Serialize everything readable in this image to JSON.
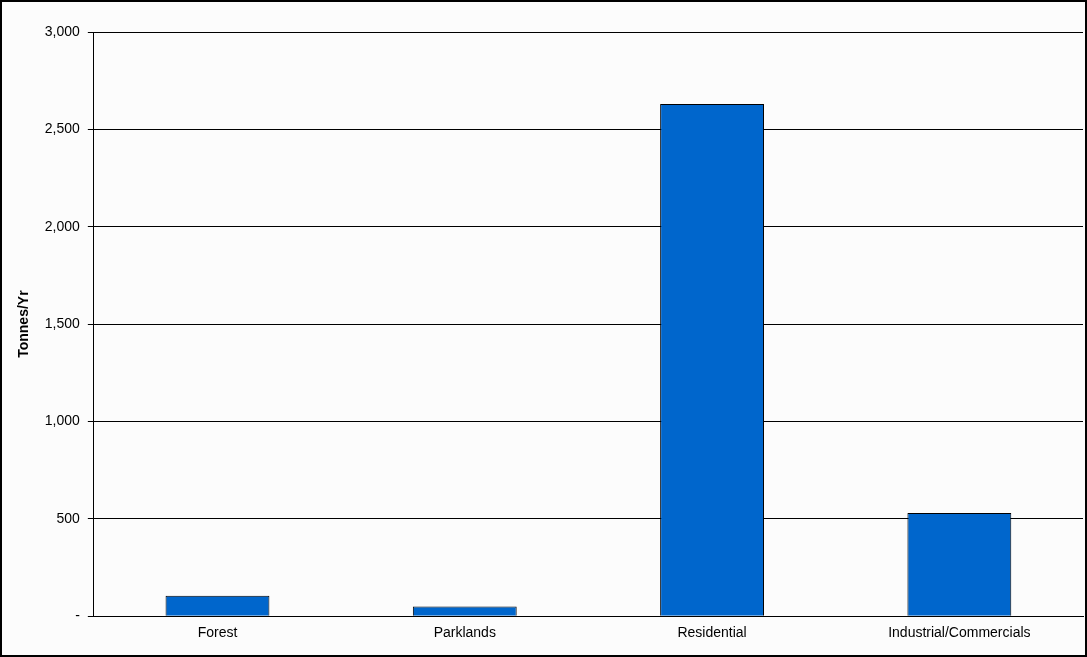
{
  "chart_data": {
    "type": "bar",
    "ylabel": "Tonnes/Yr",
    "categories": [
      "Forest",
      "Parklands",
      "Residential",
      "Industrial/Commercials"
    ],
    "values": [
      105,
      50,
      2630,
      530
    ],
    "color": "#0066cc",
    "ylim": [
      0,
      3000
    ],
    "yticks": [
      {
        "value": 0,
        "label": "-"
      },
      {
        "value": 500,
        "label": "500"
      },
      {
        "value": 1000,
        "label": "1,000"
      },
      {
        "value": 1500,
        "label": "1,500"
      },
      {
        "value": 2000,
        "label": "2,000"
      },
      {
        "value": 2500,
        "label": "2,500"
      },
      {
        "value": 3000,
        "label": "3,000"
      }
    ],
    "grid": "y",
    "legend": false
  }
}
